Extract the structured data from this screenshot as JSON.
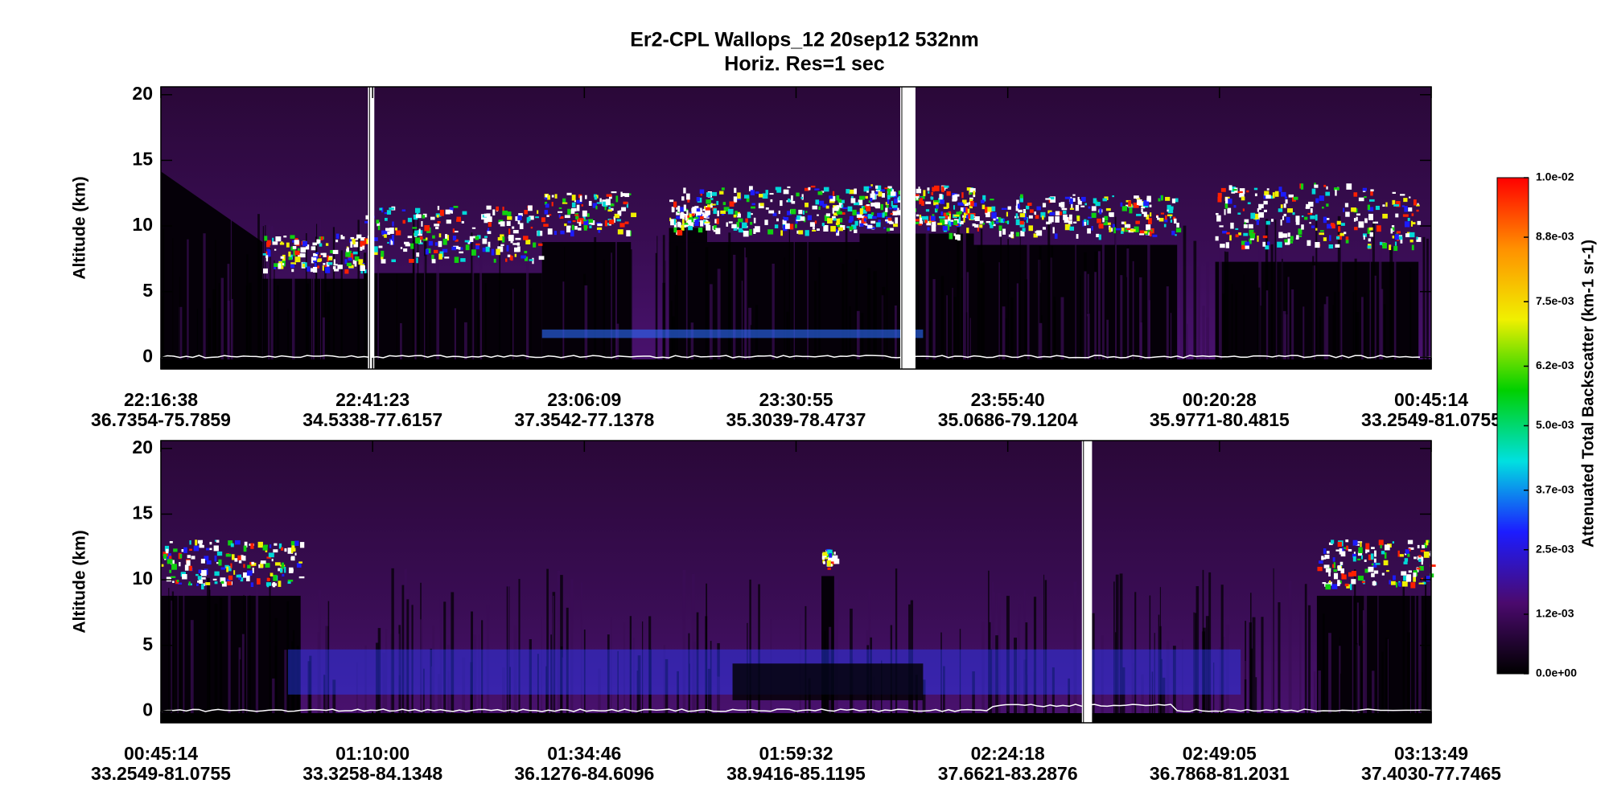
{
  "title": "Er2-CPL  Wallops_12  20sep12  532nm",
  "subtitle": "Horiz. Res=1 sec",
  "chart_data": [
    {
      "type": "heatmap",
      "ylabel": "Altitude (km)",
      "ylim": [
        -0.9,
        20.6
      ],
      "yticks": [
        0,
        5,
        10,
        15,
        20
      ],
      "categories": [
        "22:16:38",
        "22:41:23",
        "23:06:09",
        "23:30:55",
        "23:55:40",
        "00:20:28",
        "00:45:14"
      ],
      "locations": [
        "36.7354-75.7859",
        "34.5338-77.6157",
        "37.3542-77.1378",
        "35.3039-78.4737",
        "35.0686-79.1204",
        "35.9771-80.4815",
        "33.2549-81.0755"
      ]
    },
    {
      "type": "heatmap",
      "ylabel": "Altitude (km)",
      "ylim": [
        -0.9,
        20.6
      ],
      "yticks": [
        0,
        5,
        10,
        15,
        20
      ],
      "categories": [
        "00:45:14",
        "01:10:00",
        "01:34:46",
        "01:59:32",
        "02:24:18",
        "02:49:05",
        "03:13:49"
      ],
      "locations": [
        "33.2549-81.0755",
        "33.3258-84.1348",
        "36.1276-84.6096",
        "38.9416-85.1195",
        "37.6621-83.2876",
        "36.7868-81.2031",
        "37.4030-77.7465"
      ]
    }
  ],
  "colorbar": {
    "label": "Attenuated Total Backscatter (km-1 sr-1)",
    "lim": [
      0,
      0.01
    ],
    "colors": [
      "#000000",
      "#4b0a6e",
      "#1c1cff",
      "#00e0e0",
      "#00d000",
      "#f0f000",
      "#ff9000",
      "#ff0000"
    ],
    "ticks": [
      {
        "value": 0,
        "label": "0.0e+00"
      },
      {
        "value": 0.0012,
        "label": "1.2e-03"
      },
      {
        "value": 0.0025,
        "label": "2.5e-03"
      },
      {
        "value": 0.0037,
        "label": "3.7e-03"
      },
      {
        "value": 0.005,
        "label": "5.0e-03"
      },
      {
        "value": 0.0062,
        "label": "6.2e-03"
      },
      {
        "value": 0.0075,
        "label": "7.5e-03"
      },
      {
        "value": 0.0088,
        "label": "8.8e-03"
      },
      {
        "value": 0.01,
        "label": "1.0e-02"
      }
    ]
  }
}
